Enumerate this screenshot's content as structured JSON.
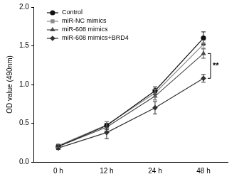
{
  "chart_data": {
    "type": "line",
    "y_label": "OD value (490nm)",
    "categories": [
      "0 h",
      "12 h",
      "24 h",
      "48 h"
    ],
    "ylim": [
      0,
      2.0
    ],
    "yticks": [
      {
        "value": 0,
        "label": "0.0"
      },
      {
        "value": 0.5,
        "label": "0.5"
      },
      {
        "value": 1.0,
        "label": "1.0"
      },
      {
        "value": 1.5,
        "label": "1.5"
      },
      {
        "value": 2.0,
        "label": "2.0"
      }
    ],
    "grid": false,
    "legend": "upper left",
    "series": [
      {
        "name": "Control",
        "color": "#111111",
        "marker": "circle",
        "values": [
          0.2,
          0.47,
          0.92,
          1.6
        ],
        "errors": [
          0.02,
          0.05,
          0.05,
          0.08
        ]
      },
      {
        "name": "miR-NC mimics",
        "color": "#8c8c8c",
        "marker": "square",
        "values": [
          0.21,
          0.48,
          0.89,
          1.52
        ],
        "errors": [
          0.02,
          0.04,
          0.05,
          0.05
        ]
      },
      {
        "name": "miR-608 mimics",
        "color": "#4a4a4a",
        "marker": "triangle",
        "values": [
          0.2,
          0.45,
          0.85,
          1.4
        ],
        "errors": [
          0.02,
          0.05,
          0.05,
          0.06
        ]
      },
      {
        "name": "miR-608 mimics+BRD4",
        "color": "#333333",
        "marker": "diamond",
        "values": [
          0.18,
          0.38,
          0.7,
          1.08
        ],
        "errors": [
          0.02,
          0.08,
          0.08,
          0.05
        ]
      }
    ],
    "annotations": [
      {
        "text": "**",
        "between": [
          "miR-608 mimics",
          "miR-608 mimics+BRD4"
        ]
      }
    ]
  }
}
